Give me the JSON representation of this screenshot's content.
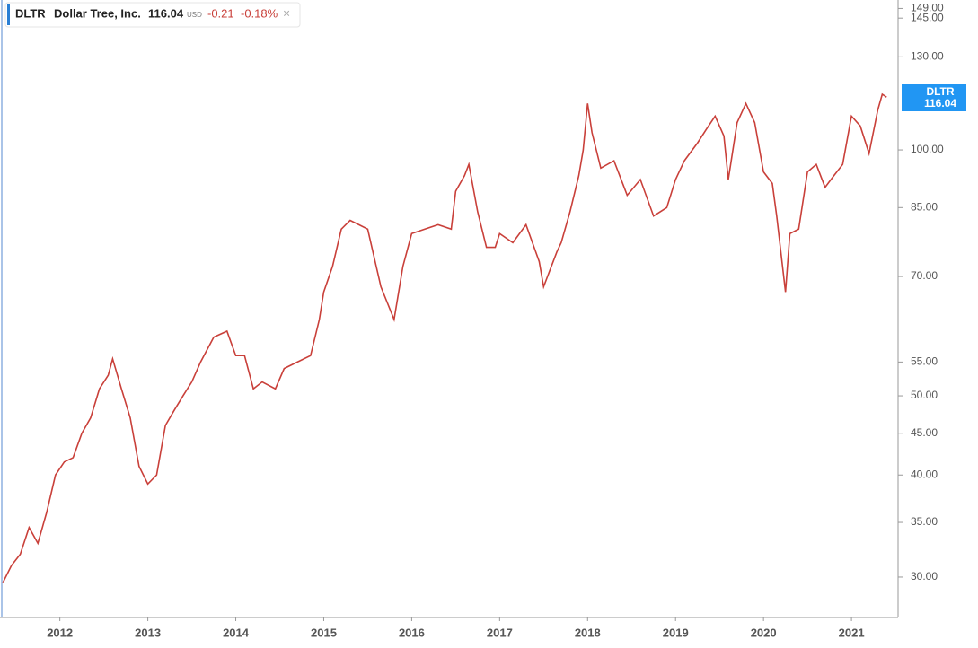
{
  "header": {
    "symbol": "DLTR",
    "name": "Dollar Tree, Inc.",
    "price": "116.04",
    "currency": "USD",
    "change": "-0.21",
    "change_percent": "-0.18%"
  },
  "chart_data": {
    "type": "line",
    "log_scale": true,
    "color": "#c9403a",
    "x": [
      2011.35,
      2011.45,
      2011.55,
      2011.65,
      2011.75,
      2011.85,
      2011.95,
      2012.05,
      2012.15,
      2012.25,
      2012.35,
      2012.45,
      2012.55,
      2012.6,
      2012.7,
      2012.8,
      2012.9,
      2013.0,
      2013.1,
      2013.2,
      2013.3,
      2013.4,
      2013.5,
      2013.6,
      2013.75,
      2013.9,
      2014.0,
      2014.1,
      2014.2,
      2014.3,
      2014.45,
      2014.55,
      2014.7,
      2014.85,
      2014.95,
      2015.0,
      2015.1,
      2015.2,
      2015.3,
      2015.4,
      2015.5,
      2015.65,
      2015.8,
      2015.9,
      2016.0,
      2016.15,
      2016.3,
      2016.45,
      2016.5,
      2016.6,
      2016.65,
      2016.75,
      2016.85,
      2016.95,
      2017.0,
      2017.15,
      2017.3,
      2017.45,
      2017.5,
      2017.65,
      2017.7,
      2017.8,
      2017.9,
      2017.95,
      2018.0,
      2018.05,
      2018.15,
      2018.3,
      2018.45,
      2018.6,
      2018.75,
      2018.9,
      2019.0,
      2019.1,
      2019.25,
      2019.35,
      2019.45,
      2019.55,
      2019.6,
      2019.7,
      2019.8,
      2019.9,
      2020.0,
      2020.1,
      2020.15,
      2020.25,
      2020.3,
      2020.4,
      2020.5,
      2020.6,
      2020.7,
      2020.8,
      2020.9,
      2021.0,
      2021.1,
      2021.2,
      2021.3,
      2021.35,
      2021.4
    ],
    "values": [
      29.5,
      31,
      32,
      34.5,
      33,
      36,
      40,
      41.5,
      42,
      45,
      47,
      51,
      53,
      55.5,
      51,
      47,
      41,
      39,
      40,
      46,
      48,
      50,
      52,
      55,
      59,
      60,
      56,
      56,
      51,
      52,
      51,
      54,
      55,
      56,
      62,
      67,
      72,
      80,
      82,
      81,
      80,
      68,
      62,
      72,
      79,
      80,
      81,
      80,
      89,
      93,
      96,
      84,
      76,
      76,
      79,
      77,
      81,
      73,
      68,
      75,
      77,
      84,
      93,
      100,
      114,
      105,
      95,
      97,
      88,
      92,
      83,
      85,
      92,
      97,
      102,
      106,
      110,
      104,
      92,
      108,
      114,
      108,
      94,
      91,
      83,
      67,
      79,
      80,
      94,
      96,
      90,
      93,
      96,
      110,
      107,
      99,
      112,
      117,
      116.04
    ],
    "xlim": [
      2011.35,
      2021.53
    ],
    "xticks": [
      2012,
      2013,
      2014,
      2015,
      2016,
      2017,
      2018,
      2019,
      2020,
      2021
    ],
    "ylim": [
      26.77,
      152.6
    ],
    "yticks": [
      {
        "value": 30,
        "label": "30.00"
      },
      {
        "value": 35,
        "label": "35.00"
      },
      {
        "value": 40,
        "label": "40.00"
      },
      {
        "value": 45,
        "label": "45.00"
      },
      {
        "value": 50,
        "label": "50.00"
      },
      {
        "value": 55,
        "label": "55.00"
      },
      {
        "value": 70,
        "label": "70.00"
      },
      {
        "value": 85,
        "label": "85.00"
      },
      {
        "value": 100,
        "label": "100.00"
      },
      {
        "value": 130,
        "label": "130.00"
      },
      {
        "value": 145,
        "label": "145.00"
      },
      {
        "value": 149,
        "label": "149.00"
      }
    ]
  }
}
